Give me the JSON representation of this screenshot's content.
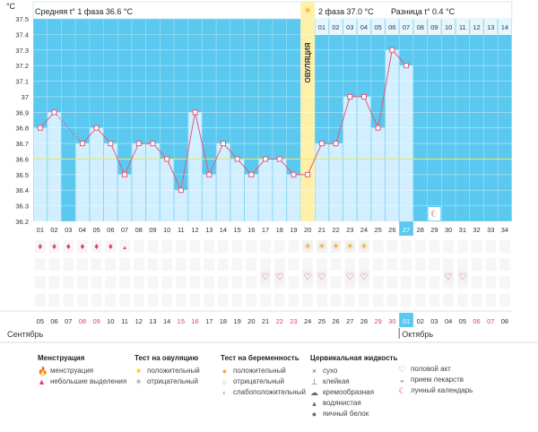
{
  "header": {
    "unit": "°C",
    "phase1_label": "Средняя t° 1 фаза",
    "phase1_value": "36.6 °C",
    "phase2_label": "2 фаза",
    "phase2_value": "37.0 °C",
    "diff_label": "Разница t°",
    "diff_value": "0.4 °C"
  },
  "ovulation_label": "ОВУЛЯЦИЯ",
  "colors": {
    "sky": "#5bc8ef",
    "bar": "#d2efff",
    "ovulation": "#fff0a8",
    "line": "#e05a7a",
    "coverline": "#e8e86a",
    "today": "#5bc8ef"
  },
  "chart_data": {
    "type": "line",
    "ylim": [
      36.2,
      37.5
    ],
    "yticks": [
      "37.5",
      "37.4",
      "37.3",
      "37.2",
      "37.1",
      "37",
      "36.9",
      "36.8",
      "36.7",
      "36.6",
      "36.5",
      "36.4",
      "36.3",
      "36.2"
    ],
    "coverline": 36.6,
    "cycle_days": [
      "01",
      "02",
      "03",
      "04",
      "05",
      "06",
      "07",
      "08",
      "09",
      "10",
      "11",
      "12",
      "13",
      "14",
      "15",
      "16",
      "17",
      "18",
      "19",
      "20",
      "21",
      "22",
      "23",
      "24",
      "25",
      "26",
      "27",
      "28",
      "29",
      "30",
      "31",
      "32",
      "33",
      "34"
    ],
    "top_post_days": [
      "01",
      "02",
      "03",
      "04",
      "05",
      "06",
      "07",
      "08",
      "09",
      "10",
      "11",
      "12",
      "13",
      "14"
    ],
    "ovulation_day": 20,
    "today_day": 27,
    "temperatures": [
      36.8,
      36.9,
      null,
      36.7,
      36.8,
      36.7,
      36.5,
      36.7,
      36.7,
      36.6,
      36.4,
      36.9,
      36.5,
      36.7,
      36.6,
      36.5,
      36.6,
      36.6,
      36.5,
      36.5,
      36.7,
      36.7,
      37.0,
      37.0,
      36.8,
      37.3,
      37.2,
      null,
      null,
      null,
      null,
      null,
      null,
      null
    ],
    "dashed_segments": [
      [
        2,
        4
      ]
    ],
    "moon_day": 29,
    "menstruation": {
      "heavy": [
        1,
        2,
        3,
        4,
        5,
        6
      ],
      "light": [
        7
      ]
    },
    "ovulation_test_positive": [
      20,
      21,
      22,
      23,
      24
    ],
    "intercourse_days": [
      12,
      13,
      15,
      16,
      18,
      19,
      25,
      26
    ],
    "calendar_dates": [
      "05",
      "06",
      "07",
      "08",
      "09",
      "10",
      "11",
      "12",
      "13",
      "14",
      "15",
      "16",
      "17",
      "18",
      "19",
      "20",
      "21",
      "22",
      "23",
      "24",
      "25",
      "26",
      "27",
      "28",
      "29",
      "30",
      "01",
      "02",
      "03",
      "04",
      "05",
      "06",
      "07",
      "08"
    ],
    "weekend_days": [
      4,
      5,
      11,
      12,
      18,
      19,
      25,
      26,
      32,
      33
    ],
    "month_start_1": "Сентябрь",
    "month_start_2": "Октябрь"
  },
  "legend": {
    "menstruation": {
      "title": "Менструация",
      "items": [
        "менструация",
        "небольшие выделения"
      ]
    },
    "ovulation_test": {
      "title": "Тест на овуляцию",
      "items": [
        "положительный",
        "отрицательный"
      ]
    },
    "pregnancy_test": {
      "title": "Тест на беременность",
      "items": [
        "положительный",
        "отрицательный",
        "слабоположительный"
      ]
    },
    "cervical": {
      "title": "Цервикальная жидкость",
      "items": [
        "сухо",
        "клейкая",
        "кремообразная",
        "водянистая",
        "яичный белок"
      ]
    },
    "other": {
      "items": [
        "половой акт",
        "прием лекарств",
        "лунный календарь"
      ]
    }
  }
}
